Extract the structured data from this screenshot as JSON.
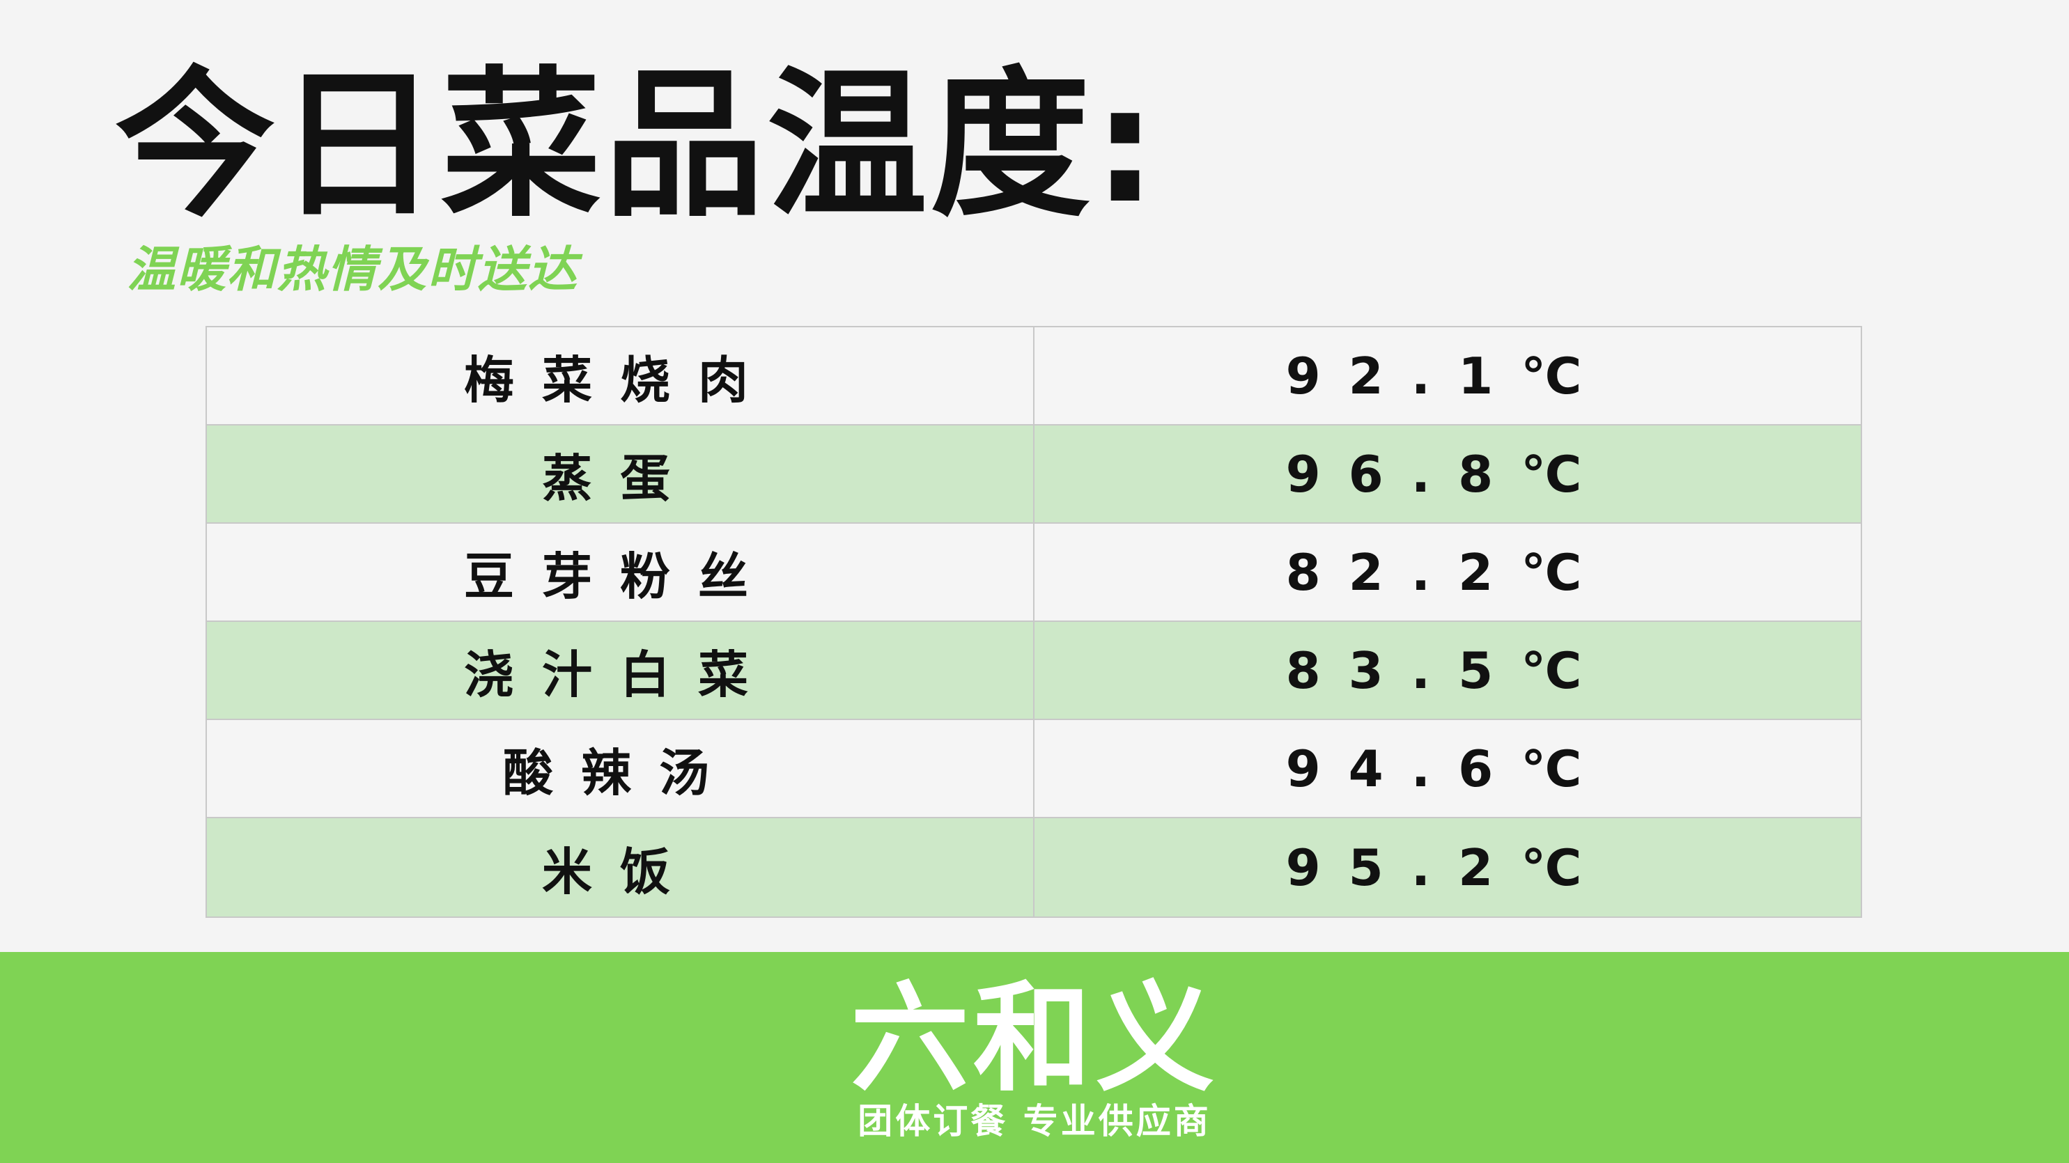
{
  "header": {
    "title": "今日菜品温度:",
    "subtitle": "温暖和热情及时送达"
  },
  "table": {
    "rows": [
      {
        "dish": "梅菜烧肉",
        "temperature": "92.1℃"
      },
      {
        "dish": "蒸蛋",
        "temperature": "96.8℃"
      },
      {
        "dish": "豆芽粉丝",
        "temperature": "82.2℃"
      },
      {
        "dish": "浇汁白菜",
        "temperature": "83.5℃"
      },
      {
        "dish": "酸辣汤",
        "temperature": "94.6℃"
      },
      {
        "dish": "米饭",
        "temperature": "95.2℃"
      }
    ]
  },
  "footer": {
    "logo": "六和义",
    "tagline": "团体订餐 专业供应商"
  },
  "colors": {
    "accent_green": "#7fd354",
    "row_highlight": "#cde8c8",
    "background": "#f4f4f4"
  }
}
